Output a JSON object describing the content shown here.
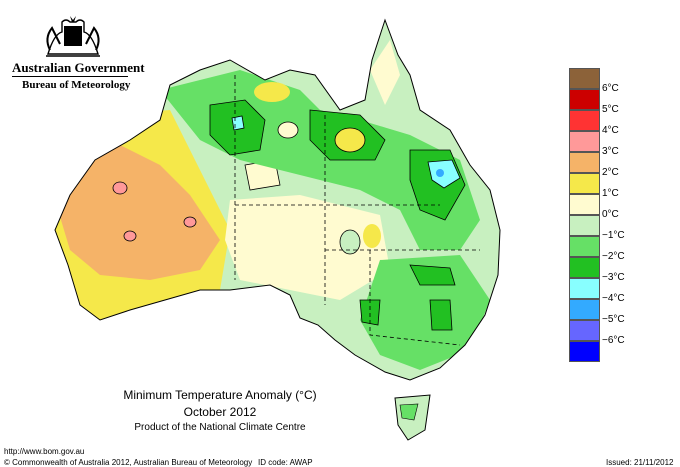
{
  "header": {
    "org_line1": "Australian Government",
    "org_line2": "Bureau of Meteorology"
  },
  "map": {
    "title_line1": "Minimum Temperature Anomaly (°C)",
    "title_line2": "October 2012",
    "title_line3": "Product of the National Climate Centre"
  },
  "legend": {
    "entries": [
      {
        "label": "6°C",
        "color": "#8c6239"
      },
      {
        "label": "5°C",
        "color": "#cc0000"
      },
      {
        "label": "4°C",
        "color": "#ff3333"
      },
      {
        "label": "3°C",
        "color": "#ff9999"
      },
      {
        "label": "2°C",
        "color": "#f5b368"
      },
      {
        "label": "1°C",
        "color": "#f5e84a"
      },
      {
        "label": "0°C",
        "color": "#fffbd0"
      },
      {
        "label": "−1°C",
        "color": "#c8f0c0"
      },
      {
        "label": "−2°C",
        "color": "#66e066"
      },
      {
        "label": "−3°C",
        "color": "#22c022"
      },
      {
        "label": "−4°C",
        "color": "#88ffff"
      },
      {
        "label": "−5°C",
        "color": "#33aaff"
      },
      {
        "label": "−6°C",
        "color": "#6666ff"
      },
      {
        "label": "",
        "color": "#0000ff"
      }
    ]
  },
  "footer": {
    "url": "http://www.bom.gov.au",
    "copyright": "© Commonwealth of Australia 2012, Australian Bureau of Meteorology",
    "id_code": "ID code: AWAP",
    "issued": "Issued: 21/11/2012"
  }
}
